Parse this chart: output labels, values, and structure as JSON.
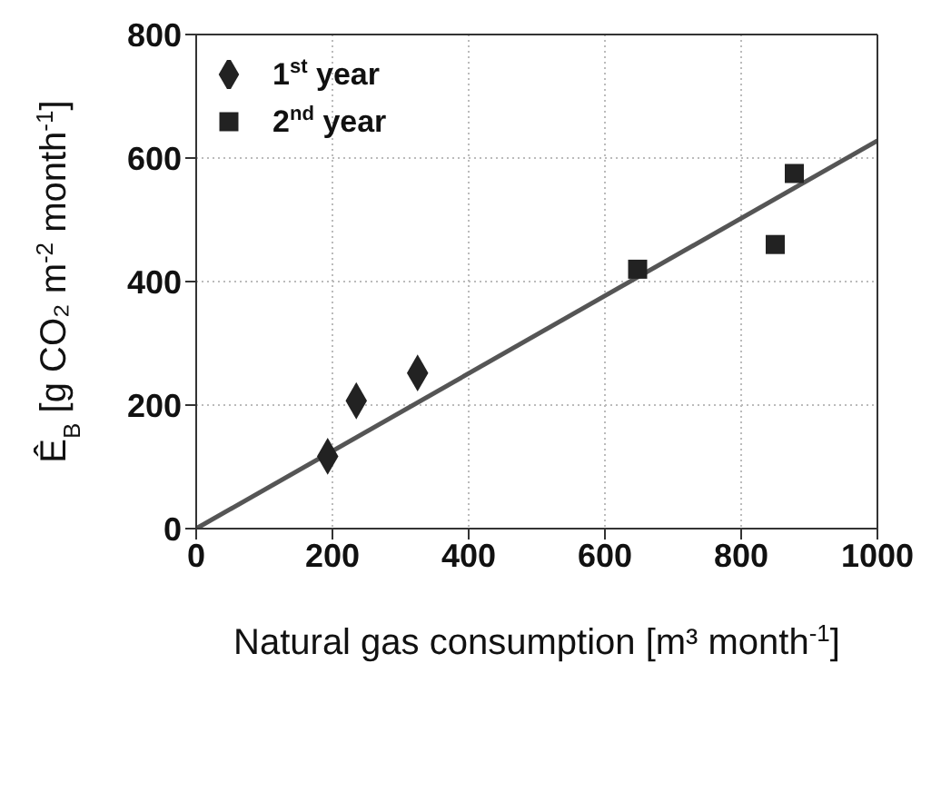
{
  "chart_data": {
    "type": "scatter",
    "xlabel": "Natural gas consumption  [m³ month$^{-1}$]",
    "ylabel": "Ê$_{B}$  [g CO₂ m$^{-2}$ month$^{-1}$]",
    "series": [
      {
        "name": "1$^{st}$ year",
        "marker": "diamond",
        "color": "#222222",
        "x": [
          193,
          235,
          325
        ],
        "values": [
          117,
          207,
          252
        ]
      },
      {
        "name": "2$^{nd}$ year",
        "marker": "square",
        "color": "#222222",
        "x": [
          648,
          850,
          878
        ],
        "values": [
          420,
          460,
          575
        ]
      },
      {
        "type": "line",
        "color": "#555555",
        "x": [
          0,
          1000
        ],
        "values": [
          0,
          628
        ]
      }
    ],
    "xlim": [
      0,
      1000
    ],
    "xticks": [
      0,
      200,
      400,
      600,
      800,
      1000
    ],
    "ylim": [
      0,
      800
    ],
    "yticks": [
      0,
      200,
      400,
      600,
      800
    ],
    "grid": true,
    "legend": "top left"
  }
}
